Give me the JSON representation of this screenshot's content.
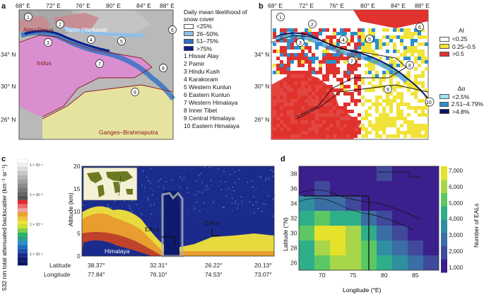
{
  "panels": {
    "a": {
      "label": "a",
      "lon_ticks": [
        "68° E",
        "72° E",
        "76° E",
        "80° E",
        "84° E",
        "88° E"
      ],
      "lat_ticks": [
        "34° N",
        "30° N",
        "26° N"
      ],
      "legend_title": "Daily mean likelihood of snow cover",
      "legend": [
        {
          "label": "<25%",
          "color": "#ffffff"
        },
        {
          "label": "26–50%",
          "color": "#8fbfe8"
        },
        {
          "label": "51–75%",
          "color": "#2e6fc4"
        },
        {
          "label": ">75%",
          "color": "#0b1f8a"
        }
      ],
      "regions": [
        "1 Hissar Alay",
        "2 Pamir",
        "3 Hindu Kush",
        "4 Karakoram",
        "5 Western Kunlun",
        "6 Eastern Kunlun",
        "7 Western Himalaya",
        "8 Inner Tibet",
        "9 Central Himalaya",
        "10 Eastern Himalaya"
      ],
      "basins": [
        "Amu Darya",
        "Tarim (Yarkand)",
        "Indus",
        "Ganges–Brahmaputra"
      ],
      "colors": {
        "terrain": "#b9b9b9",
        "indus": "#d98fcf",
        "ganges": "#e6e3a0",
        "tarim": "#c98a8f",
        "basin_border": "#8b1a1a"
      }
    },
    "b": {
      "label": "b",
      "lon_ticks": [
        "68° E",
        "72° E",
        "76° E",
        "80° E",
        "84° E",
        "88° E"
      ],
      "lat_ticks": [
        "34° N",
        "30° N",
        "26° N"
      ],
      "ai_title": "AI",
      "ai_legend": [
        {
          "label": "<0.25",
          "color": "#ffffff"
        },
        {
          "label": "0.25–0.5",
          "color": "#f2e33a"
        },
        {
          "label": ">0.5",
          "color": "#e0322e"
        }
      ],
      "da_title": "Δα",
      "da_legend": [
        {
          "label": "<2.5%",
          "color": "#9ee3f0"
        },
        {
          "label": "2.51–4.79%",
          "color": "#2a8fd0"
        },
        {
          "label": ">4.8%",
          "color": "#0b1560"
        }
      ]
    },
    "c": {
      "label": "c",
      "colorbar_title": "532 nm total attenuated backscatter (km⁻¹ sr⁻¹)",
      "colorbar_ticks": [
        "1 × 10⁻¹",
        "1 × 10⁻²",
        "1 × 10⁻³",
        "1 × 10⁻⁴"
      ],
      "ylabel": "Altitude (km)",
      "yticks": [
        "20",
        "15",
        "10",
        "5",
        "0"
      ],
      "lat_label": "Latitude",
      "lon_label": "Longitude",
      "lats": [
        "38.37°",
        "32.31°",
        "26.22°",
        "20.13°"
      ],
      "lons": [
        "77.84°",
        "76.10°",
        "74.53°",
        "73.07°"
      ],
      "annotations": [
        "EALs",
        "EALs",
        "Himalaya"
      ]
    },
    "d": {
      "label": "d",
      "ylabel": "Latitude (°N)",
      "xlabel": "Longitude (°E)",
      "colorbar_title": "Number of EALs",
      "colorbar_ticks": [
        "7,000",
        "6,000",
        "5,000",
        "4,000",
        "3,000",
        "2,000",
        "1,000"
      ]
    }
  },
  "chart_data": {
    "type": "heatmap",
    "xlabel": "Longitude (°E)",
    "ylabel": "Latitude (°N)",
    "x": [
      67.5,
      70,
      72.5,
      75,
      77.5,
      80,
      82.5,
      85,
      87.5
    ],
    "y": [
      38,
      36,
      34,
      32,
      30,
      28,
      26
    ],
    "xticks": [
      70,
      75,
      80,
      85
    ],
    "yticks": [
      26,
      28,
      30,
      32,
      34,
      36,
      38
    ],
    "zlabel": "Number of EALs",
    "zlim": [
      500,
      7000
    ],
    "values": [
      [
        600,
        800,
        700,
        900,
        1200,
        1500,
        1300,
        1000,
        800
      ],
      [
        900,
        1500,
        1200,
        1000,
        800,
        700,
        900,
        800,
        700
      ],
      [
        3500,
        2800,
        2500,
        1800,
        1300,
        1000,
        1200,
        900,
        700
      ],
      [
        4200,
        5000,
        4500,
        3800,
        2800,
        1700,
        1300,
        1100,
        900
      ],
      [
        5200,
        6200,
        6500,
        5800,
        4500,
        2800,
        1800,
        1200,
        1000
      ],
      [
        4500,
        5800,
        6200,
        6000,
        5200,
        3600,
        2600,
        1800,
        1200
      ],
      [
        3800,
        5000,
        5600,
        5400,
        4800,
        4200,
        3000,
        2200,
        1500
      ]
    ]
  }
}
